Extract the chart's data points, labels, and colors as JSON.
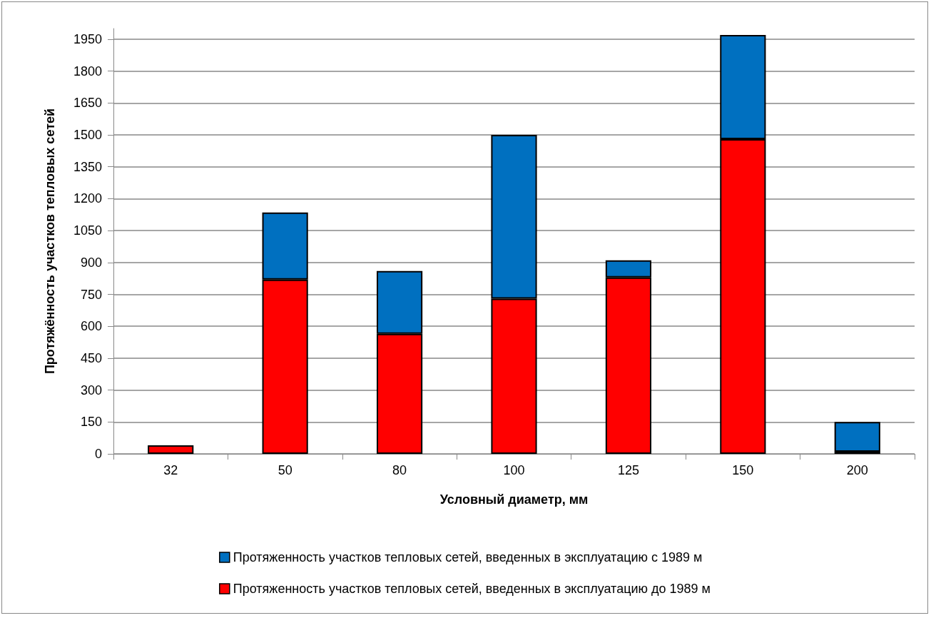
{
  "chart_data": {
    "type": "bar",
    "stacked": true,
    "xlabel": "Условный диаметр, мм",
    "ylabel": "Протяжённость участков тепловых сетей",
    "categories": [
      "32",
      "50",
      "80",
      "100",
      "125",
      "150",
      "200"
    ],
    "series": [
      {
        "name": "Протяженность участков тепловых сетей, введенных в эксплуатацию до 1989 м",
        "color": "#ff0000",
        "values": [
          40,
          820,
          565,
          730,
          830,
          1480,
          10
        ]
      },
      {
        "name": "Протяженность участков тепловых сетей, введенных в эксплуатацию с 1989 м",
        "color": "#0070c0",
        "values": [
          null,
          315,
          295,
          770,
          80,
          490,
          140
        ]
      }
    ],
    "ylim": [
      0,
      2000
    ],
    "yticks": [
      0,
      150,
      300,
      450,
      600,
      750,
      900,
      1050,
      1200,
      1350,
      1500,
      1650,
      1800,
      1950
    ],
    "grid": "y",
    "legend": "bottom"
  }
}
